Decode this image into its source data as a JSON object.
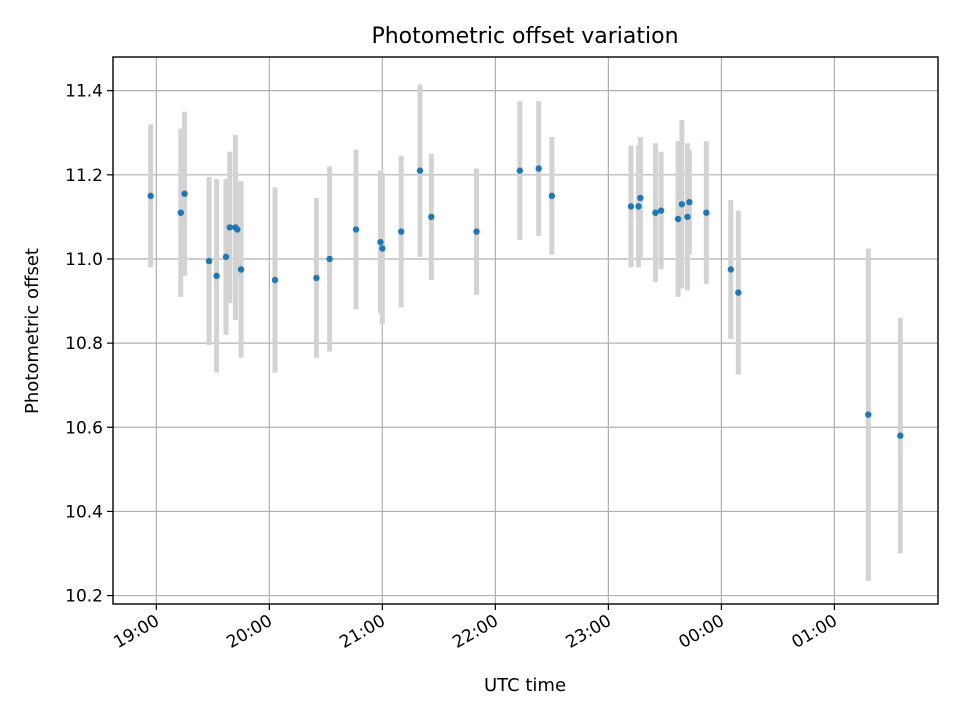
{
  "chart_data": {
    "type": "scatter",
    "title": "Photometric offset variation",
    "xlabel": "UTC time",
    "ylabel": "Photometric offset",
    "x_range": [
      "18:37",
      "01:55"
    ],
    "ylim": [
      10.18,
      11.48
    ],
    "x_ticks": [
      "19:00",
      "20:00",
      "21:00",
      "22:00",
      "23:00",
      "00:00",
      "01:00"
    ],
    "y_ticks": [
      "10.2",
      "10.4",
      "10.6",
      "10.8",
      "11.0",
      "11.2",
      "11.4"
    ],
    "grid": true,
    "colors": {
      "point": "#1f77b4",
      "error_bar": "#d3d3d3"
    },
    "series": [
      {
        "points": [
          {
            "t": "18:57",
            "y": 11.15,
            "yerr": 0.17
          },
          {
            "t": "19:13",
            "y": 11.11,
            "yerr": 0.2
          },
          {
            "t": "19:15",
            "y": 11.155,
            "yerr": 0.195
          },
          {
            "t": "19:28",
            "y": 10.995,
            "yerr": 0.2
          },
          {
            "t": "19:32",
            "y": 10.96,
            "yerr": 0.23
          },
          {
            "t": "19:37",
            "y": 11.005,
            "yerr": 0.185
          },
          {
            "t": "19:39",
            "y": 11.075,
            "yerr": 0.18
          },
          {
            "t": "19:42",
            "y": 11.075,
            "yerr": 0.22
          },
          {
            "t": "19:43",
            "y": 11.07,
            "yerr": 0.115
          },
          {
            "t": "19:45",
            "y": 10.975,
            "yerr": 0.21
          },
          {
            "t": "20:03",
            "y": 10.95,
            "yerr": 0.22
          },
          {
            "t": "20:25",
            "y": 10.955,
            "yerr": 0.19
          },
          {
            "t": "20:32",
            "y": 11.0,
            "yerr": 0.22
          },
          {
            "t": "20:46",
            "y": 11.07,
            "yerr": 0.19
          },
          {
            "t": "20:59",
            "y": 11.04,
            "yerr": 0.17
          },
          {
            "t": "21:00",
            "y": 11.025,
            "yerr": 0.18
          },
          {
            "t": "21:10",
            "y": 11.065,
            "yerr": 0.18
          },
          {
            "t": "21:20",
            "y": 11.21,
            "yerr": 0.205
          },
          {
            "t": "21:26",
            "y": 11.1,
            "yerr": 0.15
          },
          {
            "t": "21:50",
            "y": 11.065,
            "yerr": 0.15
          },
          {
            "t": "22:13",
            "y": 11.21,
            "yerr": 0.165
          },
          {
            "t": "22:23",
            "y": 11.215,
            "yerr": 0.16
          },
          {
            "t": "22:30",
            "y": 11.15,
            "yerr": 0.14
          },
          {
            "t": "23:12",
            "y": 11.125,
            "yerr": 0.145
          },
          {
            "t": "23:16",
            "y": 11.125,
            "yerr": 0.145
          },
          {
            "t": "23:17",
            "y": 11.145,
            "yerr": 0.145
          },
          {
            "t": "23:25",
            "y": 11.11,
            "yerr": 0.165
          },
          {
            "t": "23:28",
            "y": 11.115,
            "yerr": 0.14
          },
          {
            "t": "23:37",
            "y": 11.095,
            "yerr": 0.185
          },
          {
            "t": "23:39",
            "y": 11.13,
            "yerr": 0.2
          },
          {
            "t": "23:42",
            "y": 11.1,
            "yerr": 0.175
          },
          {
            "t": "23:43",
            "y": 11.135,
            "yerr": 0.125
          },
          {
            "t": "23:52",
            "y": 11.11,
            "yerr": 0.17
          },
          {
            "t": "00:05",
            "y": 10.975,
            "yerr": 0.165
          },
          {
            "t": "00:09",
            "y": 10.92,
            "yerr": 0.195
          },
          {
            "t": "01:18",
            "y": 10.63,
            "yerr": 0.395
          },
          {
            "t": "01:35",
            "y": 10.58,
            "yerr": 0.28
          }
        ]
      }
    ]
  }
}
